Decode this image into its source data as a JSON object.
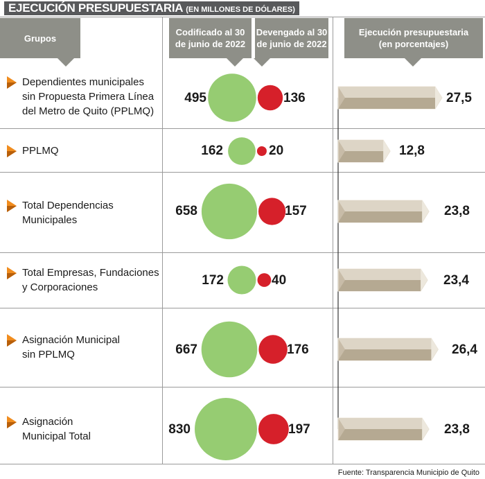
{
  "title": {
    "main": "EJECUCIÓN PRESUPUESTARIA",
    "sub": "(EN MILLONES DE DÓLARES)"
  },
  "headers": {
    "grupos": "Grupos",
    "codificado": [
      "Codificado al 30",
      "de junio de 2022"
    ],
    "devengado": [
      "Devengado al 30",
      "de junio de 2022"
    ],
    "ejecucion": [
      "Ejecución presupuestaria",
      "(en porcentajes)"
    ]
  },
  "source": "Fuente: Transparencia Municipio de Quito",
  "colors": {
    "codificado": "#96cc72",
    "devengado": "#d6202a",
    "bar": "#c8bca8",
    "header": "#8e8f88",
    "bullet": "#f08c1e"
  },
  "chart_data": {
    "type": "bubble-table",
    "title": "EJECUCIÓN PRESUPUESTARIA (EN MILLONES DE DÓLARES)",
    "series": [
      {
        "name": "Codificado al 30 de junio de 2022",
        "values": [
          495,
          162,
          658,
          172,
          667,
          830
        ]
      },
      {
        "name": "Devengado al 30 de junio de 2022",
        "values": [
          136,
          20,
          157,
          40,
          176,
          197
        ]
      },
      {
        "name": "Ejecución presupuestaria (en porcentajes)",
        "values": [
          27.5,
          12.8,
          23.8,
          23.4,
          26.4,
          23.8
        ]
      }
    ],
    "rows": [
      {
        "group": [
          "Dependientes municipales",
          "sin Propuesta Primera Línea",
          "del Metro de Quito (PPLMQ)"
        ],
        "codificado": "495",
        "devengado": "136",
        "ejecucion": "27,5",
        "pct": 27.5
      },
      {
        "group": [
          "PPLMQ"
        ],
        "codificado": "162",
        "devengado": "20",
        "ejecucion": "12,8",
        "pct": 12.8
      },
      {
        "group": [
          "Total Dependencias",
          "Municipales"
        ],
        "codificado": "658",
        "devengado": "157",
        "ejecucion": "23,8",
        "pct": 23.8
      },
      {
        "group": [
          "Total Empresas, Fundaciones",
          "y Corporaciones"
        ],
        "codificado": "172",
        "devengado": "40",
        "ejecucion": "23,4",
        "pct": 23.4
      },
      {
        "group": [
          "Asignación Municipal",
          "sin PPLMQ"
        ],
        "codificado": "667",
        "devengado": "176",
        "ejecucion": "26,4",
        "pct": 26.4
      },
      {
        "group": [
          "Asignación",
          "Municipal Total"
        ],
        "codificado": "830",
        "devengado": "197",
        "ejecucion": "23,8",
        "pct": 23.8
      }
    ]
  }
}
